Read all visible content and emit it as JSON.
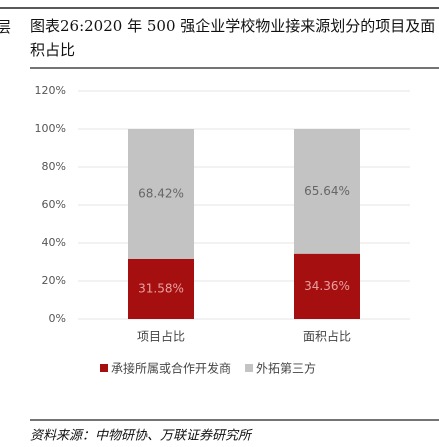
{
  "left_fragment": "层",
  "chart_data": {
    "type": "stacked_bar",
    "title": "图表26:2020 年 500 强企业学校物业接来源划分的项目及面积占比",
    "source": "资料来源：中物研协、万联证券研究所",
    "categories": [
      "项目占比",
      "面积占比"
    ],
    "series": [
      {
        "name": "承接所属或合作开发商",
        "color": "#a50f0f",
        "values": [
          31.58,
          34.36
        ],
        "value_labels": [
          "31.58%",
          "34.36%"
        ]
      },
      {
        "name": "外拓第三方",
        "color": "#c3c3c3",
        "values": [
          68.42,
          65.64
        ],
        "value_labels": [
          "68.42%",
          "65.64%"
        ]
      }
    ],
    "ylim": [
      0,
      120
    ],
    "yticks": [
      {
        "value": 0,
        "label": "0%"
      },
      {
        "value": 20,
        "label": "20%"
      },
      {
        "value": 40,
        "label": "40%"
      },
      {
        "value": 60,
        "label": "60%"
      },
      {
        "value": 80,
        "label": "80%"
      },
      {
        "value": 100,
        "label": "100%"
      },
      {
        "value": 120,
        "label": "120%"
      }
    ],
    "grid": true
  }
}
